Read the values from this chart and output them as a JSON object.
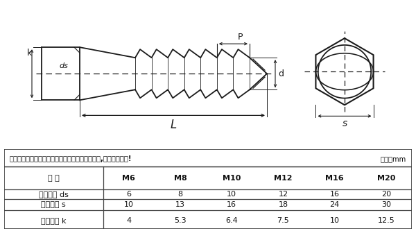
{
  "bg_color": "#ffffff",
  "table_header": "以下为单批测量数据，可能稍有误差，以实际为准,介意者请慎拍!",
  "unit_label": "单位：mm",
  "col_labels": [
    "规 格",
    "M6",
    "M8",
    "M10",
    "M12",
    "M16",
    "M20"
  ],
  "rows": [
    [
      "螺杆直径 ds",
      "6",
      "8",
      "10",
      "12",
      "16",
      "20"
    ],
    [
      "头部对边 s",
      "10",
      "13",
      "16",
      "18",
      "24",
      "30"
    ],
    [
      "头部厚度 k",
      "4",
      "5.3",
      "6.4",
      "7.5",
      "10",
      "12.5"
    ]
  ],
  "dim_labels": {
    "P": "P",
    "ds": "ds",
    "d": "d",
    "k": "k",
    "L": "L",
    "s": "s"
  },
  "line_color": "#1a1a1a",
  "table_border_color": "#444444"
}
